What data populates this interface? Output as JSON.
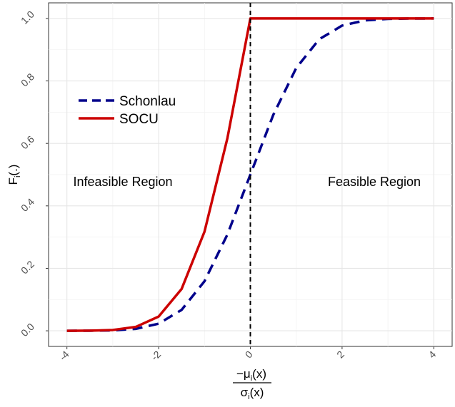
{
  "chart_data": {
    "type": "line",
    "xlabel": {
      "numerator": "−μ",
      "numerator_sub": "i",
      "numerator_tail": "(x)",
      "denominator": "σ",
      "denominator_sub": "i",
      "denominator_tail": "(x)"
    },
    "ylabel": {
      "main": "F",
      "sub": "i",
      "tail": "(.)"
    },
    "xlim": [
      -4.4,
      4.4
    ],
    "ylim": [
      -0.05,
      1.05
    ],
    "x_ticks": [
      -4,
      -2,
      0,
      2,
      4
    ],
    "y_ticks": [
      0.0,
      0.2,
      0.4,
      0.6,
      0.8,
      1.0
    ],
    "x_tick_labels": [
      "-4",
      "-2",
      "0",
      "2",
      "4"
    ],
    "y_tick_labels": [
      "0.0",
      "0.2",
      "0.4",
      "0.6",
      "0.8",
      "1.0"
    ],
    "grid": true,
    "vline": {
      "x": 0,
      "style": "dashed",
      "color": "#000000"
    },
    "legend": {
      "position": "upper-left",
      "entries": [
        "Schonlau",
        "SOCU"
      ]
    },
    "annotations": [
      {
        "text": "Infeasible Region",
        "x": -2.8,
        "y": 0.5
      },
      {
        "text": "Feasible Region",
        "x": 2.6,
        "y": 0.5
      }
    ],
    "series": [
      {
        "name": "Schonlau",
        "style": "dashed",
        "color": "#00008B",
        "x": [
          -4.0,
          -3.5,
          -3.0,
          -2.5,
          -2.0,
          -1.5,
          -1.0,
          -0.5,
          0.0,
          0.5,
          1.0,
          1.5,
          2.0,
          2.5,
          3.0,
          3.5,
          4.0
        ],
        "y": [
          0.0,
          0.0002,
          0.0013,
          0.0062,
          0.0228,
          0.0668,
          0.1587,
          0.3085,
          0.5,
          0.6915,
          0.8413,
          0.9332,
          0.9772,
          0.9938,
          0.9987,
          0.9998,
          1.0
        ]
      },
      {
        "name": "SOCU",
        "style": "solid",
        "color": "#CC0000",
        "x": [
          -4.0,
          -3.5,
          -3.0,
          -2.5,
          -2.0,
          -1.5,
          -1.0,
          -0.5,
          0.0,
          0.001,
          4.0
        ],
        "y": [
          0.0,
          0.0005,
          0.0026,
          0.0124,
          0.0456,
          0.1336,
          0.3174,
          0.617,
          1.0,
          1.0,
          1.0
        ]
      }
    ]
  }
}
